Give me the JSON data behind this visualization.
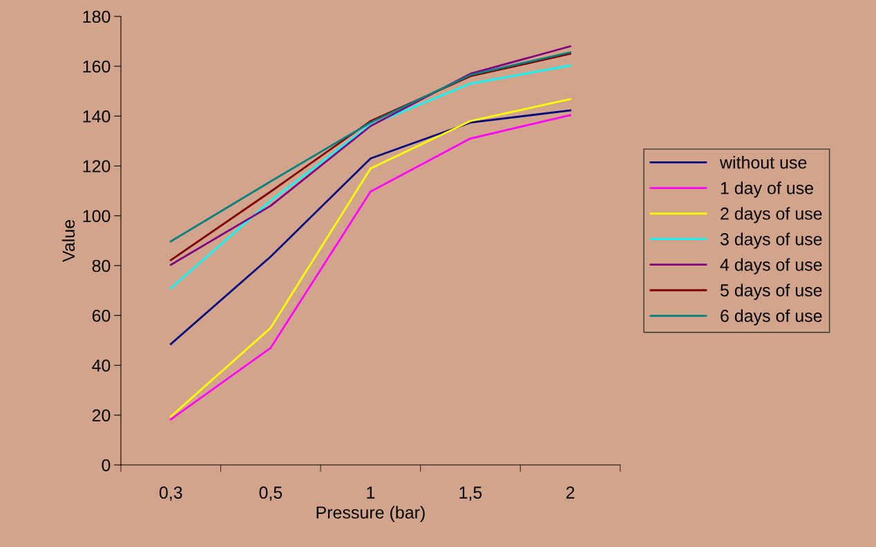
{
  "chart_data": {
    "type": "line",
    "xlabel": "Pressure (bar)",
    "ylabel": "Value",
    "categories": [
      "0,3",
      "0,5",
      "1",
      "1,5",
      "2"
    ],
    "ylim": [
      0,
      180
    ],
    "yticks": [
      0,
      20,
      40,
      60,
      80,
      100,
      120,
      140,
      160,
      180
    ],
    "grid": false,
    "legend": "right",
    "marker": "none",
    "series": [
      {
        "name": "without use",
        "color": "#000080",
        "values": [
          48.5,
          83.6,
          123,
          137.4,
          142.3
        ]
      },
      {
        "name": "1 day of use",
        "color": "#ff00ff",
        "values": [
          18.3,
          47,
          109.7,
          131,
          140.4
        ]
      },
      {
        "name": "2 days of use",
        "color": "#ffff00",
        "values": [
          19.4,
          55,
          119,
          138,
          146.8
        ]
      },
      {
        "name": "3 days of use",
        "color": "#00ffff",
        "values": [
          70.9,
          106,
          136.5,
          153,
          160.3
        ]
      },
      {
        "name": "4 days of use",
        "color": "#800080",
        "values": [
          80.3,
          104,
          136,
          157,
          168
        ]
      },
      {
        "name": "5 days of use",
        "color": "#800000",
        "values": [
          82.2,
          109.7,
          138,
          156,
          165
        ]
      },
      {
        "name": "6 days of use",
        "color": "#008080",
        "values": [
          89.7,
          113.8,
          137.4,
          156.5,
          165.6
        ]
      }
    ]
  }
}
